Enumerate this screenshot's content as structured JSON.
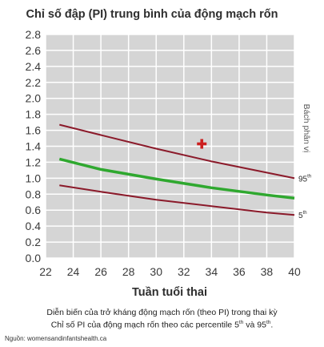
{
  "chart_data": {
    "type": "line",
    "title": "Chỉ số đập (PI) trung bình của động mạch rốn",
    "xlabel": "Tuần tuổi thai",
    "ylabel_right": "Bách phân vị",
    "xlim": [
      22,
      40
    ],
    "ylim": [
      0.0,
      2.8
    ],
    "xticks": [
      22,
      24,
      26,
      28,
      30,
      32,
      34,
      36,
      38,
      40
    ],
    "yticks": [
      "0.0",
      "0.2",
      "0.4",
      "0.6",
      "0.8",
      "1.0",
      "1.2",
      "1.4",
      "1.6",
      "1.8",
      "2.0",
      "2.2",
      "2.4",
      "2.6",
      "2.8"
    ],
    "grid": true,
    "series": [
      {
        "name": "95th",
        "color": "#8b1a2a",
        "x": [
          23,
          26,
          30,
          34,
          38,
          40
        ],
        "y": [
          1.67,
          1.54,
          1.37,
          1.21,
          1.07,
          1.0
        ]
      },
      {
        "name": "",
        "color": "#2fa82f",
        "x": [
          23,
          26,
          30,
          34,
          38,
          40
        ],
        "y": [
          1.24,
          1.11,
          0.99,
          0.88,
          0.79,
          0.75
        ]
      },
      {
        "name": "5th",
        "color": "#8b1a2a",
        "x": [
          23,
          26,
          30,
          34,
          38,
          40
        ],
        "y": [
          0.91,
          0.83,
          0.73,
          0.65,
          0.57,
          0.54
        ]
      }
    ],
    "series_labels": {
      "p95": {
        "num": "95",
        "sup": "th"
      },
      "p5": {
        "num": "5",
        "sup": "th"
      }
    },
    "marker": {
      "x": 33.3,
      "y": 1.43,
      "color": "#cc1f1f",
      "shape": "plus"
    }
  },
  "caption": {
    "line1": "Diễn biến của trở kháng động mạch rốn (theo PI) trong thai kỳ",
    "line2_a": "Chỉ số PI của động mạch rốn theo các percentile 5",
    "line2_sup1": "th",
    "line2_b": " và 95",
    "line2_sup2": "th",
    "line2_c": ".",
    "source": "Nguồn: womensandinfantshealth.ca"
  }
}
